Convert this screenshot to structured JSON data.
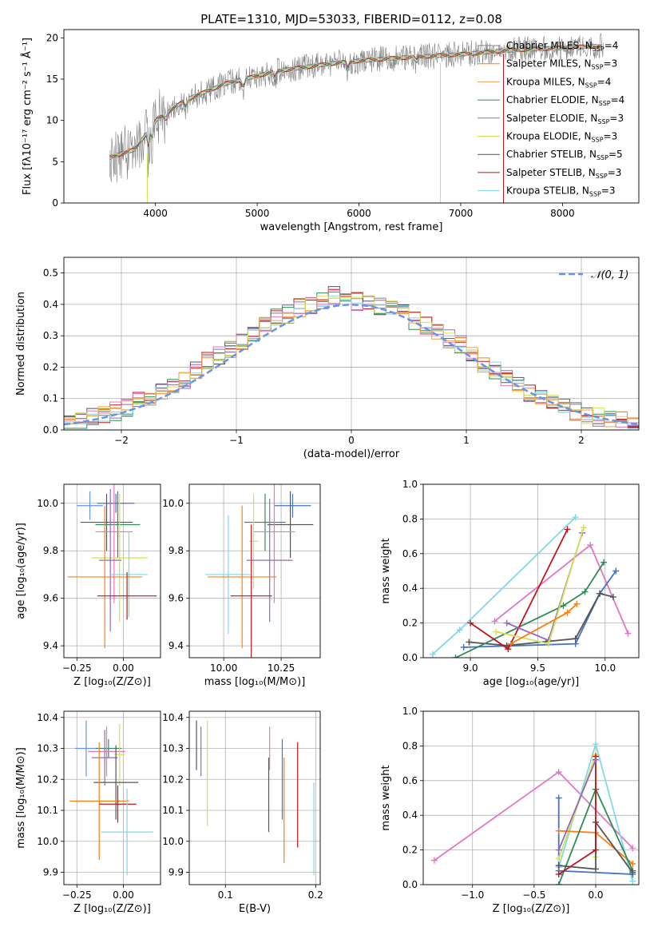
{
  "title": "PLATE=1310, MJD=53033, FIBERID=0112, z=0.08",
  "colors": [
    "#808080",
    "#ff7f0e",
    "#e8a14e",
    "#2e8b57",
    "#9467bd",
    "#d4e157",
    "#555555",
    "#c0161b",
    "#80d8e8",
    "#e377c2",
    "#4472c4",
    "#e07020",
    "#5b8a60",
    "#8e44ad",
    "#2f2f2f",
    "#9e1b1b",
    "#5bc0de"
  ],
  "chart_data": [
    {
      "type": "line",
      "title": "PLATE=1310, MJD=53033, FIBERID=0112, z=0.08",
      "xlabel": "wavelength [Angstrom, rest frame]",
      "ylabel": "Flux [fλ10⁻¹⁷ erg cm⁻² s⁻¹ Å⁻¹]",
      "xlim": [
        3100,
        8750
      ],
      "ylim": [
        0,
        21
      ],
      "xticks": [
        4000,
        5000,
        6000,
        7000,
        8000
      ],
      "yticks": [
        0,
        5,
        10,
        15,
        20
      ],
      "legend": "top-right",
      "series": [
        {
          "name": "Chabrier MILES, N$_{SSP}$=4",
          "color": "#808080"
        },
        {
          "name": "Salpeter MILES, N$_{SSP}$=3",
          "color": "#ff7f0e"
        },
        {
          "name": "Kroupa MILES, N$_{SSP}$=4",
          "color": "#e8a14e"
        },
        {
          "name": "Chabrier ELODIE, N$_{SSP}$=4",
          "color": "#2e8b57"
        },
        {
          "name": "Salpeter ELODIE, N$_{SSP}$=3",
          "color": "#9467bd"
        },
        {
          "name": "Kroupa ELODIE, N$_{SSP}$=3",
          "color": "#d4e157"
        },
        {
          "name": "Chabrier STELIB, N$_{SSP}$=5",
          "color": "#555555"
        },
        {
          "name": "Salpeter STELIB, N$_{SSP}$=3",
          "color": "#c0161b"
        },
        {
          "name": "Kroupa STELIB, N$_{SSP}$=3",
          "color": "#80d8e8"
        }
      ],
      "continuum": {
        "x": [
          3550,
          3800,
          4000,
          4300,
          4700,
          5200,
          5800,
          6300,
          7000,
          7500,
          8000,
          8400
        ],
        "y": [
          5.5,
          6.5,
          10.0,
          12.5,
          14.5,
          16.0,
          17.0,
          17.5,
          18.0,
          18.5,
          18.8,
          19.0
        ]
      }
    },
    {
      "type": "line",
      "xlabel": "(data-model)/error",
      "ylabel": "Normed distribution",
      "xlim": [
        -2.5,
        2.5
      ],
      "ylim": [
        0,
        0.55
      ],
      "xticks": [
        -2,
        -1,
        0,
        1,
        2
      ],
      "yticks": [
        0.0,
        0.1,
        0.2,
        0.3,
        0.4,
        0.5
      ],
      "legend": "top-right",
      "reference": {
        "name": "𝒩(0, 1)",
        "color": "#6495ed"
      },
      "histogram_centers": [
        -2.45,
        -2.35,
        -2.25,
        -2.15,
        -2.05,
        -1.95,
        -1.85,
        -1.75,
        -1.65,
        -1.55,
        -1.45,
        -1.35,
        -1.25,
        -1.15,
        -1.05,
        -0.95,
        -0.85,
        -0.75,
        -0.65,
        -0.55,
        -0.45,
        -0.35,
        -0.25,
        -0.15,
        -0.05,
        0.05,
        0.15,
        0.25,
        0.35,
        0.45,
        0.55,
        0.65,
        0.75,
        0.85,
        0.95,
        1.05,
        1.15,
        1.25,
        1.35,
        1.45,
        1.55,
        1.65,
        1.75,
        1.85,
        1.95,
        2.05,
        2.15,
        2.25,
        2.35,
        2.45
      ],
      "histogram_base": [
        0.02,
        0.03,
        0.04,
        0.05,
        0.06,
        0.07,
        0.09,
        0.1,
        0.12,
        0.14,
        0.16,
        0.19,
        0.22,
        0.24,
        0.26,
        0.28,
        0.31,
        0.33,
        0.36,
        0.37,
        0.39,
        0.4,
        0.41,
        0.43,
        0.42,
        0.41,
        0.4,
        0.39,
        0.39,
        0.37,
        0.35,
        0.33,
        0.31,
        0.29,
        0.27,
        0.24,
        0.21,
        0.19,
        0.17,
        0.15,
        0.12,
        0.1,
        0.09,
        0.08,
        0.06,
        0.05,
        0.04,
        0.04,
        0.03,
        0.02
      ]
    },
    {
      "type": "scatter",
      "xlabel": "Z [log₁₀(Z/Z⊙)]",
      "ylabel": "age  [log₁₀(age/yr)]",
      "xlim": [
        -0.32,
        0.2
      ],
      "ylim": [
        9.35,
        10.08
      ],
      "xticks": [
        -0.25,
        0.0
      ],
      "yticks": [
        9.4,
        9.6,
        9.8,
        10.0
      ],
      "points": [
        {
          "x": -0.04,
          "y": 10.0,
          "xerr": 0.1,
          "yerr": 0.04,
          "color": "#4472c4"
        },
        {
          "x": -0.18,
          "y": 9.99,
          "xerr": 0.07,
          "yerr": 0.06,
          "color": "#6495ed"
        },
        {
          "x": -0.09,
          "y": 9.92,
          "xerr": 0.14,
          "yerr": 0.12,
          "color": "#555555"
        },
        {
          "x": -0.03,
          "y": 9.91,
          "xerr": 0.12,
          "yerr": 0.14,
          "color": "#2e8b57"
        },
        {
          "x": -0.05,
          "y": 9.88,
          "xerr": 0.1,
          "yerr": 0.3,
          "color": "#e377c2"
        },
        {
          "x": -0.02,
          "y": 9.77,
          "xerr": 0.15,
          "yerr": 0.27,
          "color": "#d4e157"
        },
        {
          "x": -0.07,
          "y": 9.76,
          "xerr": 0.06,
          "yerr": 0.3,
          "color": "#9467bd"
        },
        {
          "x": 0.03,
          "y": 9.7,
          "xerr": 0.1,
          "yerr": 0.18,
          "color": "#80d8e8"
        },
        {
          "x": -0.1,
          "y": 9.69,
          "xerr": 0.2,
          "yerr": 0.3,
          "color": "#ff7f0e"
        },
        {
          "x": 0.02,
          "y": 9.61,
          "xerr": 0.16,
          "yerr": 0.1,
          "color": "#c0161b"
        }
      ]
    },
    {
      "type": "scatter",
      "xlabel": "mass [log₁₀(M/M⊙)]",
      "xlim": [
        9.85,
        10.42
      ],
      "ylim": [
        9.35,
        10.08
      ],
      "xticks": [
        10.0,
        10.25
      ],
      "yticks": [
        9.4,
        9.6,
        9.8,
        10.0
      ],
      "points": [
        {
          "x": 10.3,
          "y": 9.99,
          "xerr": 0.08,
          "yerr": 0.05,
          "color": "#4472c4"
        },
        {
          "x": 10.29,
          "y": 9.91,
          "xerr": 0.1,
          "yerr": 0.14,
          "color": "#555555"
        },
        {
          "x": 10.18,
          "y": 9.92,
          "xerr": 0.09,
          "yerr": 0.12,
          "color": "#2e8b57"
        },
        {
          "x": 10.22,
          "y": 9.88,
          "xerr": 0.09,
          "yerr": 0.3,
          "color": "#e377c2"
        },
        {
          "x": 10.13,
          "y": 9.84,
          "xerr": 0.02,
          "yerr": 0.2,
          "color": "#d4e157"
        },
        {
          "x": 10.2,
          "y": 9.76,
          "xerr": 0.1,
          "yerr": 0.26,
          "color": "#9467bd"
        },
        {
          "x": 10.02,
          "y": 9.7,
          "xerr": 0.1,
          "yerr": 0.25,
          "color": "#80d8e8"
        },
        {
          "x": 10.08,
          "y": 9.69,
          "xerr": 0.15,
          "yerr": 0.3,
          "color": "#ff7f0e"
        },
        {
          "x": 10.12,
          "y": 9.61,
          "xerr": 0.09,
          "yerr": 0.3,
          "color": "#c0161b"
        }
      ]
    },
    {
      "type": "line",
      "xlabel": "age  [log₁₀(age/yr)]",
      "ylabel": "mass weight",
      "xlim": [
        8.65,
        10.25
      ],
      "ylim": [
        0,
        1.0
      ],
      "xticks": [
        9.0,
        9.5,
        10.0
      ],
      "yticks": [
        0.0,
        0.2,
        0.4,
        0.6,
        0.8,
        1.0
      ],
      "series": [
        {
          "color": "#80d8e8",
          "x": [
            8.72,
            8.92,
            9.78
          ],
          "y": [
            0.02,
            0.16,
            0.81
          ]
        },
        {
          "color": "#e377c2",
          "x": [
            9.18,
            9.89,
            10.17
          ],
          "y": [
            0.21,
            0.65,
            0.14
          ]
        },
        {
          "color": "#4472c4",
          "x": [
            8.95,
            9.78,
            9.96,
            10.08
          ],
          "y": [
            0.06,
            0.08,
            0.37,
            0.5
          ]
        },
        {
          "color": "#555555",
          "x": [
            8.99,
            9.27,
            9.78,
            9.96,
            10.06
          ],
          "y": [
            0.09,
            0.07,
            0.11,
            0.37,
            0.35
          ]
        },
        {
          "color": "#2e8b57",
          "x": [
            8.89,
            9.69,
            9.85,
            9.99
          ],
          "y": [
            0.0,
            0.3,
            0.38,
            0.55
          ]
        },
        {
          "color": "#c0161b",
          "x": [
            9.0,
            9.28,
            9.72
          ],
          "y": [
            0.2,
            0.05,
            0.74
          ]
        },
        {
          "color": "#9467bd",
          "x": [
            9.27,
            9.58,
            9.83
          ],
          "y": [
            0.2,
            0.1,
            0.72
          ]
        },
        {
          "color": "#d4e157",
          "x": [
            9.19,
            9.58,
            9.84
          ],
          "y": [
            0.15,
            0.08,
            0.75
          ]
        },
        {
          "color": "#ff7f0e",
          "x": [
            9.3,
            9.72,
            9.79
          ],
          "y": [
            0.08,
            0.26,
            0.31
          ]
        }
      ]
    },
    {
      "type": "scatter",
      "xlabel": "Z [log₁₀(Z/Z⊙)]",
      "ylabel": "mass [log₁₀(M/M⊙)]",
      "xlim": [
        -0.32,
        0.2
      ],
      "ylim": [
        9.86,
        10.42
      ],
      "xticks": [
        -0.25,
        0.0
      ],
      "yticks": [
        9.9,
        10.0,
        10.1,
        10.2,
        10.3,
        10.4
      ],
      "points": [
        {
          "x": -0.2,
          "y": 10.3,
          "xerr": 0.06,
          "yerr": 0.09,
          "color": "#6495ed"
        },
        {
          "x": -0.08,
          "y": 10.3,
          "xerr": 0.07,
          "yerr": 0.03,
          "color": "#2e8b57"
        },
        {
          "x": -0.09,
          "y": 10.29,
          "xerr": 0.1,
          "yerr": 0.08,
          "color": "#e377c2"
        },
        {
          "x": -0.1,
          "y": 10.27,
          "xerr": 0.07,
          "yerr": 0.09,
          "color": "#9467bd"
        },
        {
          "x": -0.02,
          "y": 10.28,
          "xerr": 0.03,
          "yerr": 0.1,
          "color": "#d4e157"
        },
        {
          "x": -0.04,
          "y": 10.19,
          "xerr": 0.12,
          "yerr": 0.12,
          "color": "#555555"
        },
        {
          "x": -0.13,
          "y": 10.13,
          "xerr": 0.16,
          "yerr": 0.19,
          "color": "#ff7f0e"
        },
        {
          "x": -0.03,
          "y": 10.12,
          "xerr": 0.1,
          "yerr": 0.06,
          "color": "#c0161b"
        },
        {
          "x": 0.02,
          "y": 10.03,
          "xerr": 0.14,
          "yerr": 0.14,
          "color": "#80d8e8"
        }
      ]
    },
    {
      "type": "scatter",
      "xlabel": "E(B-V)",
      "xlim": [
        0.06,
        0.205
      ],
      "ylim": [
        9.86,
        10.42
      ],
      "xticks": [
        0.1,
        0.2
      ],
      "yticks": [
        9.9,
        10.0,
        10.1,
        10.2,
        10.3,
        10.4
      ],
      "points": [
        {
          "x": 0.068,
          "y": 10.31,
          "yerr": 0.08,
          "color": "#555555"
        },
        {
          "x": 0.073,
          "y": 10.29,
          "yerr": 0.08,
          "color": "#9467bd"
        },
        {
          "x": 0.08,
          "y": 10.22,
          "yerr": 0.17,
          "color": "#d4e157"
        },
        {
          "x": 0.148,
          "y": 10.15,
          "yerr": 0.12,
          "color": "#555555"
        },
        {
          "x": 0.149,
          "y": 10.3,
          "yerr": 0.07,
          "color": "#e377c2"
        },
        {
          "x": 0.163,
          "y": 10.2,
          "yerr": 0.13,
          "color": "#4472c4"
        },
        {
          "x": 0.165,
          "y": 10.1,
          "yerr": 0.17,
          "color": "#ff7f0e"
        },
        {
          "x": 0.18,
          "y": 10.15,
          "yerr": 0.17,
          "color": "#c0161b"
        },
        {
          "x": 0.198,
          "y": 10.04,
          "yerr": 0.15,
          "color": "#80d8e8"
        }
      ]
    },
    {
      "type": "line",
      "xlabel": "Z [log₁₀(Z/Z⊙)]",
      "ylabel": "mass weight",
      "xlim": [
        -1.4,
        0.35
      ],
      "ylim": [
        0,
        1.0
      ],
      "xticks": [
        -1.0,
        -0.5,
        0.0
      ],
      "yticks": [
        0.0,
        0.2,
        0.4,
        0.6,
        0.8,
        1.0
      ],
      "series": [
        {
          "color": "#e377c2",
          "x": [
            -1.31,
            -0.3,
            0.3
          ],
          "y": [
            0.14,
            0.65,
            0.21
          ]
        },
        {
          "color": "#80d8e8",
          "x": [
            -0.3,
            0.0,
            0.3
          ],
          "y": [
            0.1,
            0.81,
            0.02
          ]
        },
        {
          "color": "#4472c4",
          "x": [
            -0.3,
            -0.3,
            0.3
          ],
          "y": [
            0.5,
            0.08,
            0.06
          ]
        },
        {
          "color": "#d4e157",
          "x": [
            -0.3,
            0.0,
            0.0
          ],
          "y": [
            0.15,
            0.75,
            0.16
          ]
        },
        {
          "color": "#ff7f0e",
          "x": [
            -0.3,
            0.0,
            0.3
          ],
          "y": [
            0.31,
            0.3,
            0.12
          ]
        },
        {
          "color": "#2e8b57",
          "x": [
            -0.3,
            0.0,
            0.3
          ],
          "y": [
            0.0,
            0.55,
            0.08
          ]
        },
        {
          "color": "#555555",
          "x": [
            -0.3,
            0.0,
            0.0,
            0.3
          ],
          "y": [
            0.11,
            0.09,
            0.36,
            0.07
          ]
        },
        {
          "color": "#c0161b",
          "x": [
            -0.3,
            0.0,
            0.0
          ],
          "y": [
            0.06,
            0.2,
            0.74
          ]
        },
        {
          "color": "#9467bd",
          "x": [
            -0.3,
            0.0
          ],
          "y": [
            0.2,
            0.72
          ]
        }
      ]
    }
  ]
}
